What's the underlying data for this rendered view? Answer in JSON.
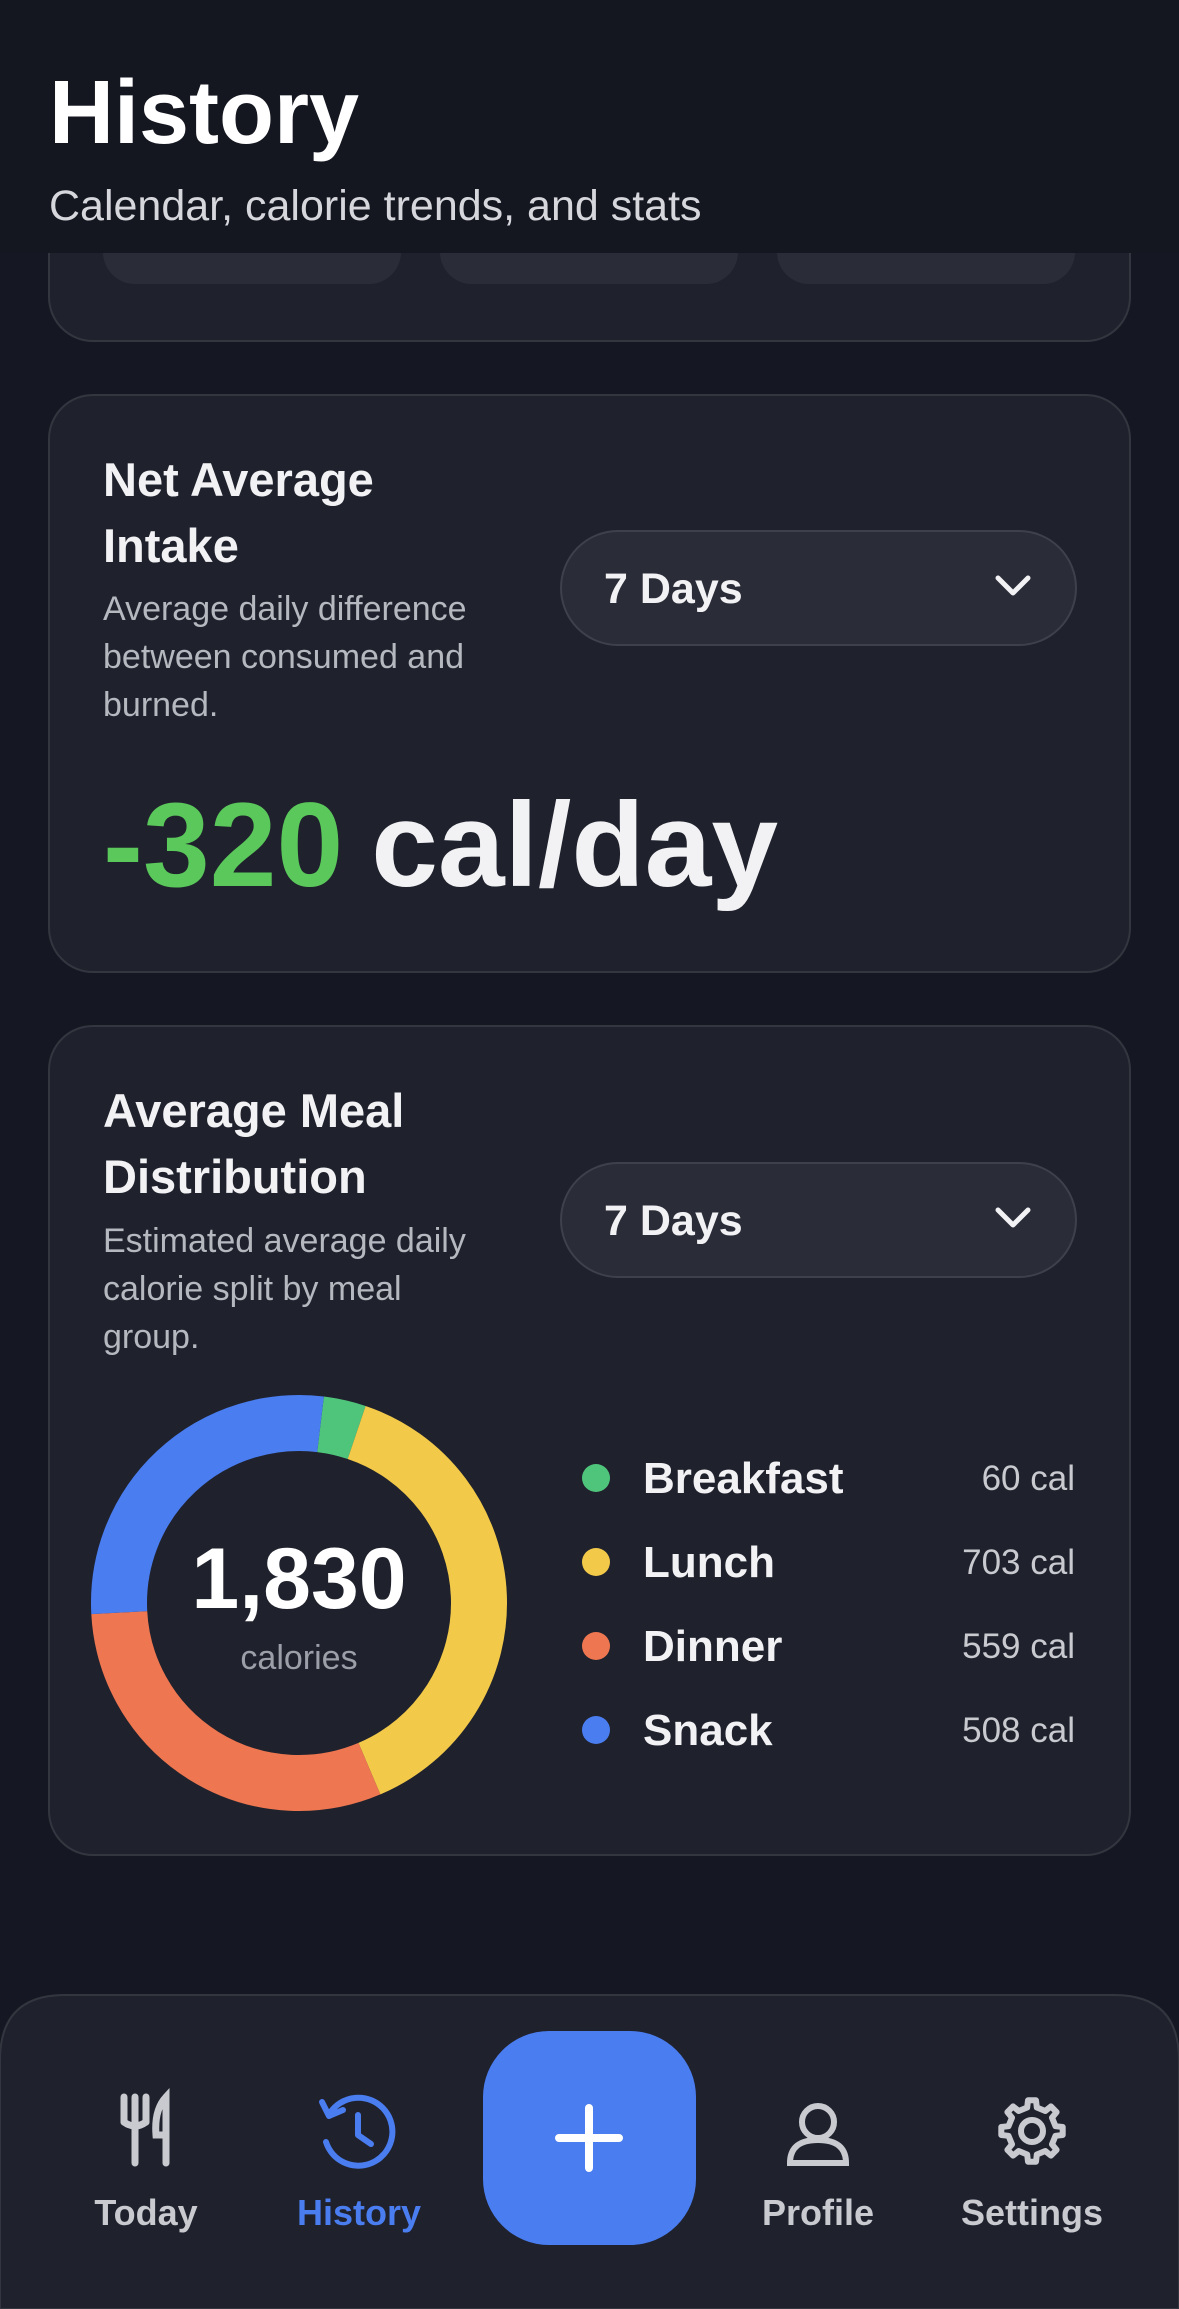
{
  "header": {
    "title": "History",
    "subtitle": "Calendar, calorie trends, and stats"
  },
  "net_intake": {
    "title_lines": [
      "Net Average",
      "Intake"
    ],
    "description_lines": [
      "Average daily difference",
      "between consumed and",
      "burned."
    ],
    "range": "7 Days",
    "value": "-320",
    "unit": "cal/day"
  },
  "meal_distribution": {
    "title_lines": [
      "Average Meal",
      "Distribution"
    ],
    "description_lines": [
      "Estimated average daily",
      "calorie split by meal",
      "group."
    ],
    "range": "7 Days",
    "chart": {
      "type": "donut",
      "center_value": "1,830",
      "center_caption": "calories",
      "categories": [
        "Breakfast",
        "Lunch",
        "Dinner",
        "Snack"
      ],
      "values": [
        60,
        703,
        559,
        508
      ],
      "value_labels": [
        "60 cal",
        "703 cal",
        "559 cal",
        "508 cal"
      ],
      "colors": [
        "#4fc57c",
        "#f3c94a",
        "#ee7650",
        "#4a7df0"
      ]
    }
  },
  "nav": {
    "items": [
      "Today",
      "History",
      "Profile",
      "Settings"
    ],
    "active": "History"
  }
}
